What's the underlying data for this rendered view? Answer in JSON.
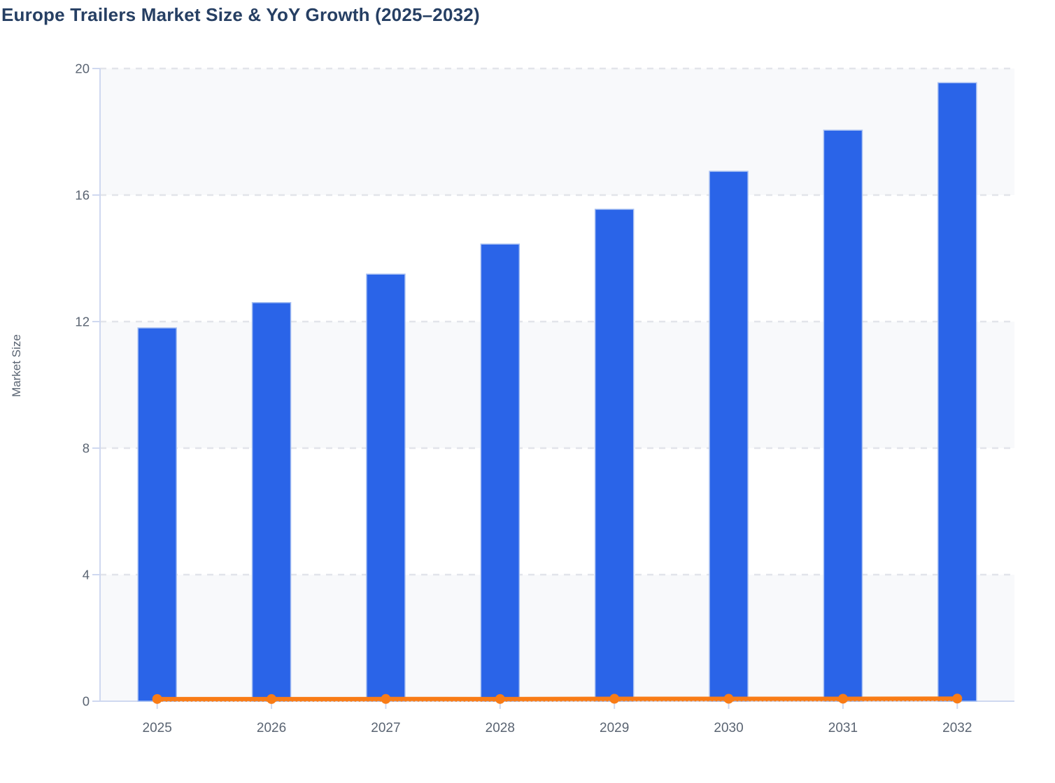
{
  "chart_data": {
    "type": "bar",
    "title": "Europe Trailers Market Size & YoY Growth (2025–2032)",
    "xlabel": "",
    "ylabel": "Market Size",
    "categories": [
      "2025",
      "2026",
      "2027",
      "2028",
      "2029",
      "2030",
      "2031",
      "2032"
    ],
    "series": [
      {
        "name": "Market Size",
        "type": "bar",
        "color": "#2a64e8",
        "border_color": "#a6bff2",
        "values": [
          11.8,
          12.6,
          13.5,
          14.45,
          15.55,
          16.75,
          18.05,
          19.55
        ]
      },
      {
        "name": "YoY Growth",
        "type": "line",
        "color": "#f97c16",
        "marker": "circle",
        "values": [
          0.07,
          0.068,
          0.071,
          0.07,
          0.076,
          0.077,
          0.078,
          0.083
        ]
      }
    ],
    "ylim": [
      0,
      20
    ],
    "y_ticks": [
      0,
      4,
      8,
      12,
      16,
      20
    ],
    "grid": "horizontal-dashed",
    "plot_bands_alternating": true,
    "legend_position": "none"
  },
  "style": {
    "title_color": "#263f63",
    "tick_label_color": "#5a6472",
    "axis_line_color": "#cfd8f0",
    "gridline_color": "#e2e4ea",
    "band_shade_color": "#f8f9fb",
    "band_plain_color": "#ffffff",
    "background_color": "#ffffff"
  }
}
